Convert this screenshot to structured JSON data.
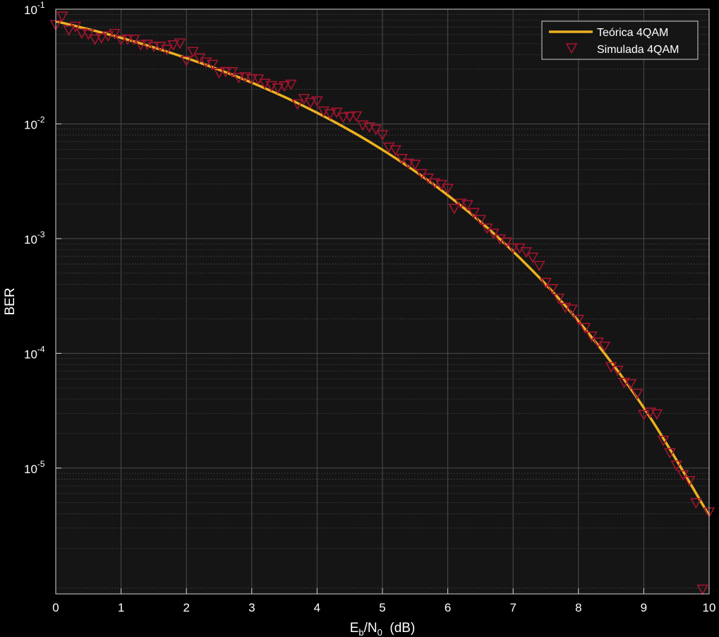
{
  "chart_data": {
    "type": "line",
    "title": "",
    "scale": {
      "x": "linear",
      "y": "log"
    },
    "xlim": [
      0,
      10
    ],
    "ylim": [
      8e-07,
      0.1
    ],
    "x_ticks": [
      0,
      1,
      2,
      3,
      4,
      5,
      6,
      7,
      8,
      9,
      10
    ],
    "y_ticks": [
      {
        "value": 0.1,
        "base": "10",
        "exp": "-1"
      },
      {
        "value": 0.01,
        "base": "10",
        "exp": "-2"
      },
      {
        "value": 0.001,
        "base": "10",
        "exp": "-3"
      },
      {
        "value": 0.0001,
        "base": "10",
        "exp": "-4"
      },
      {
        "value": 1e-05,
        "base": "10",
        "exp": "-5"
      }
    ],
    "xlabel": {
      "main": "E",
      "sub1": "b",
      "mid": "/N",
      "sub2": "0",
      "tail": "  (dB)"
    },
    "ylabel": "BER",
    "grid": true,
    "minor_grid": true,
    "legend_position": "top-right",
    "colors": {
      "background": "#000000",
      "axes_background": "#151515",
      "grid": "#4d4d4d",
      "axis": "#cfcfcf",
      "theory_line": "#edb120",
      "sim_marker": "#a2142f"
    },
    "series": [
      {
        "name": "Teórica 4QAM",
        "style": "line",
        "x": [
          0,
          1,
          2,
          3,
          4,
          5,
          6,
          7,
          8,
          9,
          10
        ],
        "y": [
          0.0786,
          0.0563,
          0.0375,
          0.0229,
          0.0125,
          0.00595,
          0.00239,
          0.000773,
          0.000191,
          3.36e-05,
          3.87e-06
        ]
      },
      {
        "name": "Simulada 4QAM",
        "style": "marker",
        "marker": "triangle-down",
        "x": [
          0.0,
          0.1,
          0.2,
          0.3,
          0.4,
          0.5,
          0.6,
          0.7,
          0.8,
          0.9,
          1.0,
          1.1,
          1.2,
          1.3,
          1.4,
          1.5,
          1.6,
          1.7,
          1.8,
          1.9,
          2.0,
          2.1,
          2.2,
          2.3,
          2.4,
          2.5,
          2.6,
          2.7,
          2.8,
          2.9,
          3.0,
          3.1,
          3.2,
          3.3,
          3.4,
          3.5,
          3.6,
          3.7,
          3.8,
          3.9,
          4.0,
          4.1,
          4.2,
          4.3,
          4.4,
          4.5,
          4.6,
          4.7,
          4.8,
          4.9,
          5.0,
          5.1,
          5.2,
          5.3,
          5.4,
          5.5,
          5.6,
          5.7,
          5.8,
          5.9,
          6.0,
          6.1,
          6.2,
          6.3,
          6.4,
          6.5,
          6.6,
          6.7,
          6.8,
          6.9,
          7.0,
          7.1,
          7.2,
          7.3,
          7.4,
          7.5,
          7.6,
          7.7,
          7.8,
          7.9,
          8.0,
          8.1,
          8.2,
          8.3,
          8.4,
          8.5,
          8.6,
          8.7,
          8.8,
          8.9,
          9.0,
          9.1,
          9.2,
          9.3,
          9.4,
          9.5,
          9.6,
          9.7,
          9.8,
          9.9,
          10.0
        ],
        "y": [
          0.0729,
          0.0864,
          0.0657,
          0.0706,
          0.0617,
          0.0606,
          0.0546,
          0.0561,
          0.0584,
          0.0612,
          0.0539,
          0.0547,
          0.0545,
          0.049,
          0.0493,
          0.0472,
          0.0474,
          0.0444,
          0.0487,
          0.0505,
          0.0356,
          0.0426,
          0.0375,
          0.0345,
          0.0329,
          0.0279,
          0.0285,
          0.0284,
          0.0253,
          0.0256,
          0.0247,
          0.0246,
          0.0225,
          0.0215,
          0.0205,
          0.0214,
          0.0221,
          0.0149,
          0.0166,
          0.0153,
          0.0158,
          0.0129,
          0.0122,
          0.0126,
          0.0114,
          0.0116,
          0.0117,
          0.00975,
          0.00939,
          0.00895,
          0.00802,
          0.00625,
          0.00591,
          0.00497,
          0.00452,
          0.00443,
          0.00367,
          0.00336,
          0.00305,
          0.00296,
          0.00273,
          0.00183,
          0.00203,
          0.00197,
          0.00168,
          0.00146,
          0.00123,
          0.00111,
          0.000989,
          0.000931,
          0.000826,
          0.000826,
          0.000765,
          0.000687,
          0.000581,
          0.000413,
          0.000365,
          0.000301,
          0.000251,
          0.000242,
          0.000197,
          0.000167,
          0.000141,
          0.000125,
          0.000115,
          7.63e-05,
          7.09e-05,
          5.57e-05,
          5.42e-05,
          4.46e-05,
          2.92e-05,
          3.06e-05,
          2.96e-05,
          1.74e-05,
          1.36e-05,
          1.06e-05,
          8.71e-06,
          7.74e-06,
          4.97e-06,
          8.77e-07,
          4.13e-06
        ]
      }
    ]
  }
}
